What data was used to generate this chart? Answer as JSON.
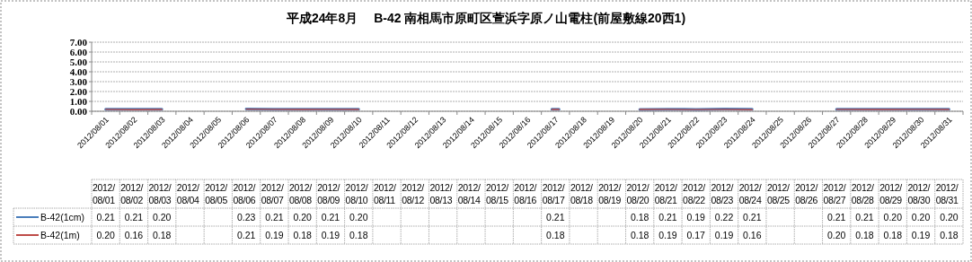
{
  "chart_data": {
    "type": "line",
    "title": "平成24年8月　 B-42 南相馬市原町区萱浜字原ノ山電柱(前屋敷線20西1)",
    "categories": [
      "2012/08/01",
      "2012/08/02",
      "2012/08/03",
      "2012/08/04",
      "2012/08/05",
      "2012/08/06",
      "2012/08/07",
      "2012/08/08",
      "2012/08/09",
      "2012/08/10",
      "2012/08/11",
      "2012/08/12",
      "2012/08/13",
      "2012/08/14",
      "2012/08/15",
      "2012/08/16",
      "2012/08/17",
      "2012/08/18",
      "2012/08/19",
      "2012/08/20",
      "2012/08/21",
      "2012/08/22",
      "2012/08/23",
      "2012/08/24",
      "2012/08/25",
      "2012/08/26",
      "2012/08/27",
      "2012/08/28",
      "2012/08/29",
      "2012/08/30",
      "2012/08/31"
    ],
    "series": [
      {
        "name": "B-42(1cm)",
        "color": "#4a7ebb",
        "values": [
          0.21,
          0.21,
          0.2,
          null,
          null,
          0.23,
          0.21,
          0.2,
          0.21,
          0.2,
          null,
          null,
          null,
          null,
          null,
          null,
          0.21,
          null,
          null,
          0.18,
          0.21,
          0.19,
          0.22,
          0.21,
          null,
          null,
          0.21,
          0.21,
          0.2,
          0.2,
          0.2
        ],
        "value_labels": [
          "0.21",
          "0.21",
          "0.20",
          null,
          null,
          "0.23",
          "0.21",
          "0.20",
          "0.21",
          "0.20",
          null,
          null,
          null,
          null,
          null,
          null,
          "0.21",
          null,
          null,
          "0.18",
          "0.21",
          "0.19",
          "0.22",
          "0.21",
          null,
          null,
          "0.21",
          "0.21",
          "0.20",
          "0.20",
          "0.20"
        ]
      },
      {
        "name": "B-42(1m)",
        "color": "#be4b48",
        "values": [
          0.2,
          0.16,
          0.18,
          null,
          null,
          0.21,
          0.19,
          0.18,
          0.19,
          0.18,
          null,
          null,
          null,
          null,
          null,
          null,
          0.18,
          null,
          null,
          0.18,
          0.19,
          0.17,
          0.19,
          0.16,
          null,
          null,
          0.2,
          0.18,
          0.18,
          0.19,
          0.18
        ],
        "value_labels": [
          "0.20",
          "0.16",
          "0.18",
          null,
          null,
          "0.21",
          "0.19",
          "0.18",
          "0.19",
          "0.18",
          null,
          null,
          null,
          null,
          null,
          null,
          "0.18",
          null,
          null,
          "0.18",
          "0.19",
          "0.17",
          "0.19",
          "0.16",
          null,
          null,
          "0.20",
          "0.18",
          "0.18",
          "0.19",
          "0.18"
        ]
      }
    ],
    "ylim": [
      0,
      7
    ],
    "yticks": [
      {
        "value": 0,
        "label": "0.00"
      },
      {
        "value": 1,
        "label": "1.00"
      },
      {
        "value": 2,
        "label": "2.00"
      },
      {
        "value": 3,
        "label": "3.00"
      },
      {
        "value": 4,
        "label": "4.00"
      },
      {
        "value": 5,
        "label": "5.00"
      },
      {
        "value": 6,
        "label": "6.00"
      },
      {
        "value": 7,
        "label": "7.00"
      }
    ],
    "grid": "y",
    "legend": "bottom left",
    "marker": "none",
    "line_style": "solid"
  }
}
